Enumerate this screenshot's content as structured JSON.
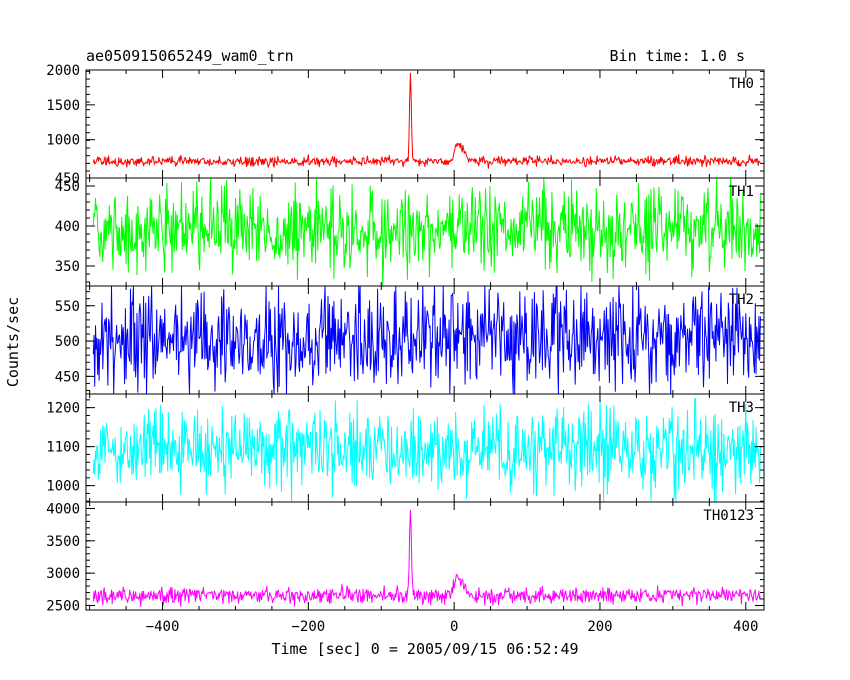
{
  "header": {
    "title": "ae050915065249_wam0_trn",
    "bin_time": "Bin time: 1.0 s"
  },
  "axes": {
    "xlabel": "Time [sec] 0 = 2005/09/15 06:52:49",
    "ylabel": "Counts/sec"
  },
  "chart_data": {
    "type": "line",
    "title": "ae050915065249_wam0_trn",
    "xlabel": "Time [sec] 0 = 2005/09/15 06:52:49",
    "ylabel": "Counts/sec",
    "xlim": [
      -505,
      425
    ],
    "x_start": -495,
    "x_end": 420,
    "bin_time_s": 1.0,
    "x_ticks": [
      -400,
      -200,
      0,
      200,
      400
    ],
    "panels": [
      {
        "name": "TH0",
        "color": "#ff0000",
        "ylim": [
          450,
          2000
        ],
        "y_ticks": [
          450,
          1000,
          1500,
          2000
        ],
        "baseline": 690,
        "noise": 35,
        "features": [
          {
            "type": "spike",
            "x": -60,
            "peak": 2000
          },
          {
            "type": "bump",
            "x": 5,
            "peak": 950
          }
        ]
      },
      {
        "name": "TH1",
        "color": "#00ff00",
        "ylim": [
          325,
          460
        ],
        "y_ticks": [
          350,
          400,
          450
        ],
        "baseline": 397,
        "noise": 26,
        "features": []
      },
      {
        "name": "TH2",
        "color": "#0000ff",
        "ylim": [
          425,
          578
        ],
        "y_ticks": [
          450,
          500,
          550
        ],
        "baseline": 503,
        "noise": 36,
        "features": []
      },
      {
        "name": "TH3",
        "color": "#00ffff",
        "ylim": [
          958,
          1235
        ],
        "y_ticks": [
          1000,
          1100,
          1200
        ],
        "baseline": 1093,
        "noise": 52,
        "features": []
      },
      {
        "name": "TH0123",
        "color": "#ff00ff",
        "ylim": [
          2430,
          4100
        ],
        "y_ticks": [
          2500,
          3000,
          3500,
          4000
        ],
        "baseline": 2655,
        "noise": 60,
        "features": [
          {
            "type": "spike",
            "x": -60,
            "peak": 4020
          },
          {
            "type": "bump",
            "x": 5,
            "peak": 2940
          }
        ]
      }
    ]
  }
}
